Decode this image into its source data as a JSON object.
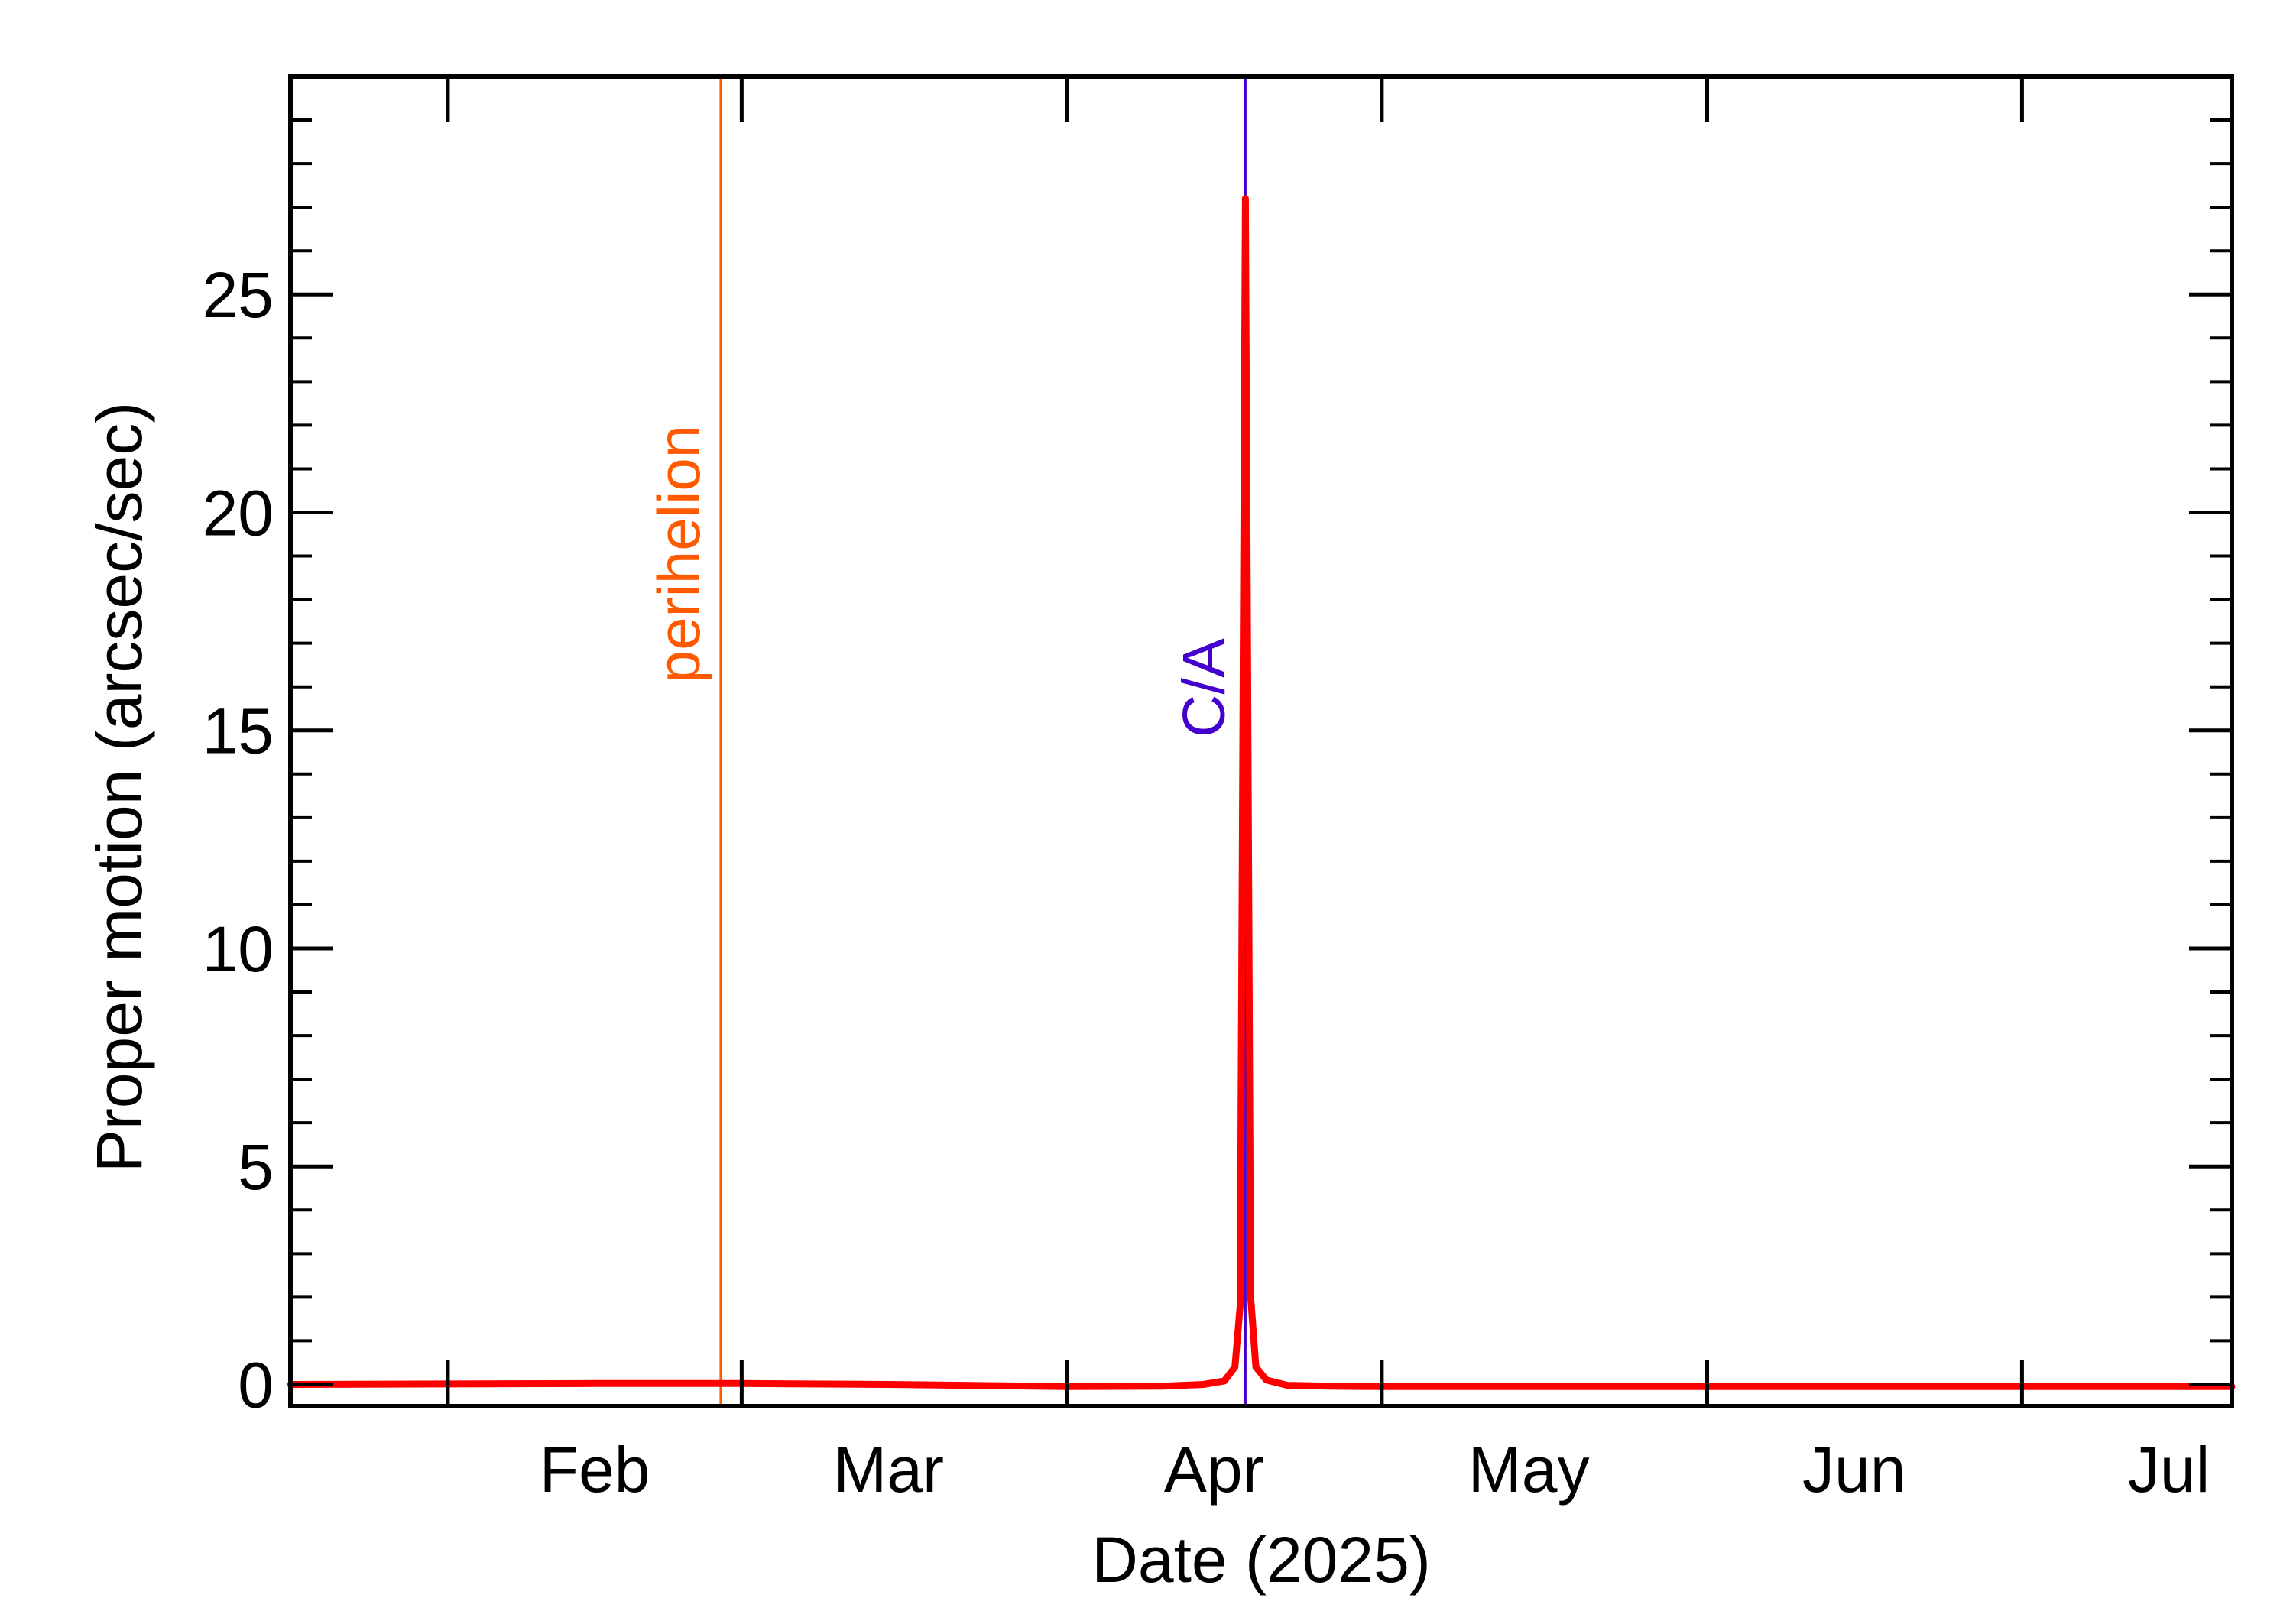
{
  "chart_data": {
    "type": "line",
    "title": "",
    "xlabel": "Date (2025)",
    "ylabel": "Proper motion (arcsec/sec)",
    "xlim": [
      "2025-01-17",
      "2025-07-21"
    ],
    "ylim": [
      -0.5,
      30
    ],
    "grid": false,
    "legend": "none",
    "x_ticks": [
      {
        "date": "2025-02-01",
        "label": ""
      },
      {
        "date": "2025-03-01",
        "label": ""
      },
      {
        "date": "2025-04-01",
        "label": ""
      },
      {
        "date": "2025-05-01",
        "label": ""
      },
      {
        "date": "2025-06-01",
        "label": ""
      },
      {
        "date": "2025-07-01",
        "label": ""
      }
    ],
    "x_month_labels": [
      {
        "date": "2025-02-15",
        "label": "Feb"
      },
      {
        "date": "2025-03-15",
        "label": "Mar"
      },
      {
        "date": "2025-04-15",
        "label": "Apr"
      },
      {
        "date": "2025-05-15",
        "label": "May"
      },
      {
        "date": "2025-06-15",
        "label": "Jun"
      },
      {
        "date": "2025-07-15",
        "label": "Jul"
      }
    ],
    "y_ticks": [
      0,
      5,
      10,
      15,
      20,
      25
    ],
    "y_tick_labels": [
      "0",
      "5",
      "10",
      "15",
      "20",
      "25"
    ],
    "series": [
      {
        "color": "#ff0000",
        "x": [
          "2025-01-17",
          "2025-02-01",
          "2025-02-15",
          "2025-03-01",
          "2025-03-15",
          "2025-04-01",
          "2025-04-10",
          "2025-04-14",
          "2025-04-16",
          "2025-04-17",
          "2025-04-17T12:00",
          "2025-04-18",
          "2025-04-18T12:00",
          "2025-04-19",
          "2025-04-20",
          "2025-04-22",
          "2025-04-26",
          "2025-05-01",
          "2025-05-15",
          "2025-06-01",
          "2025-06-15",
          "2025-07-01",
          "2025-07-21"
        ],
        "y": [
          0.0,
          0.01,
          0.02,
          0.02,
          0.0,
          -0.05,
          -0.04,
          0.0,
          0.08,
          0.4,
          1.8,
          27.2,
          2.0,
          0.4,
          0.1,
          -0.02,
          -0.04,
          -0.05,
          -0.05,
          -0.05,
          -0.05,
          -0.05,
          -0.05
        ]
      }
    ],
    "annotations": [
      {
        "type": "vline",
        "date": "2025-02-27",
        "label": "perihelion",
        "color": "#ff5a00"
      },
      {
        "type": "vline",
        "date": "2025-04-18",
        "label": "C/A",
        "color": "#4400cc"
      }
    ]
  }
}
